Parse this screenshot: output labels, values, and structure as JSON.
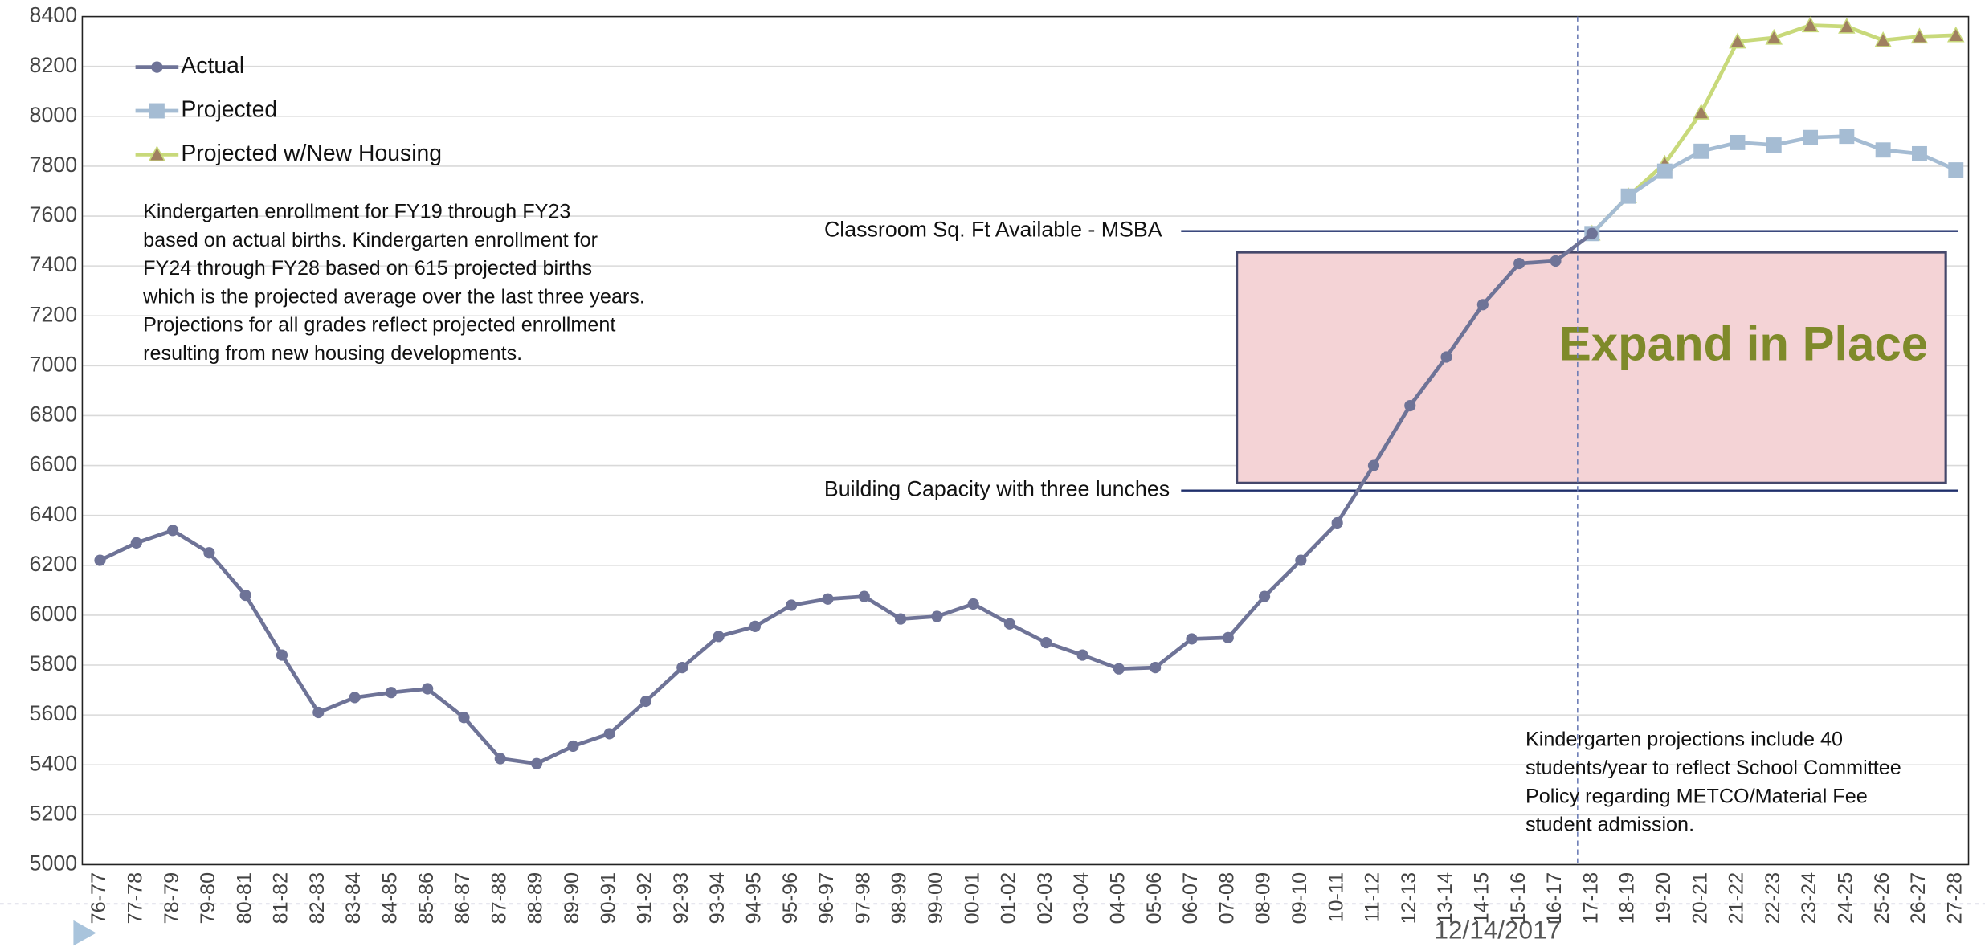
{
  "chart_data": {
    "type": "line",
    "categories": [
      "76-77",
      "77-78",
      "78-79",
      "79-80",
      "80-81",
      "81-82",
      "82-83",
      "83-84",
      "84-85",
      "85-86",
      "86-87",
      "87-88",
      "88-89",
      "89-90",
      "90-91",
      "91-92",
      "92-93",
      "93-94",
      "94-95",
      "95-96",
      "96-97",
      "97-98",
      "98-99",
      "99-00",
      "00-01",
      "01-02",
      "02-03",
      "03-04",
      "04-05",
      "05-06",
      "06-07",
      "07-08",
      "08-09",
      "09-10",
      "10-11",
      "11-12",
      "12-13",
      "13-14",
      "14-15",
      "15-16",
      "16-17",
      "17-18",
      "18-19",
      "19-20",
      "20-21",
      "21-22",
      "22-23",
      "23-24",
      "24-25",
      "25-26",
      "26-27",
      "27-28"
    ],
    "series": [
      {
        "name": "Actual",
        "color": "#6e7397",
        "marker": "circle",
        "values": [
          6220,
          6290,
          6340,
          6250,
          6080,
          5840,
          5610,
          5670,
          5690,
          5705,
          5590,
          5425,
          5405,
          5475,
          5525,
          5655,
          5790,
          5915,
          5955,
          6040,
          6065,
          6075,
          5985,
          5995,
          6045,
          5965,
          5890,
          5840,
          5785,
          5790,
          5905,
          5910,
          6075,
          6220,
          6370,
          6600,
          6840,
          7035,
          7245,
          7410,
          7420,
          7530,
          null,
          null,
          null,
          null,
          null,
          null,
          null,
          null,
          null,
          null
        ]
      },
      {
        "name": "Projected",
        "color": "#a5bcd3",
        "marker": "square",
        "values": [
          null,
          null,
          null,
          null,
          null,
          null,
          null,
          null,
          null,
          null,
          null,
          null,
          null,
          null,
          null,
          null,
          null,
          null,
          null,
          null,
          null,
          null,
          null,
          null,
          null,
          null,
          null,
          null,
          null,
          null,
          null,
          null,
          null,
          null,
          null,
          null,
          null,
          null,
          null,
          null,
          null,
          7530,
          7680,
          7780,
          7860,
          7895,
          7885,
          7915,
          7920,
          7865,
          7850,
          7785
        ]
      },
      {
        "name": "Projected w/New Housing",
        "color": "#c8d97a",
        "marker": "triangle",
        "marker_color": "#a08060",
        "values": [
          null,
          null,
          null,
          null,
          null,
          null,
          null,
          null,
          null,
          null,
          null,
          null,
          null,
          null,
          null,
          null,
          null,
          null,
          null,
          null,
          null,
          null,
          null,
          null,
          null,
          null,
          null,
          null,
          null,
          null,
          null,
          null,
          null,
          null,
          null,
          null,
          null,
          null,
          null,
          null,
          null,
          7530,
          7680,
          7810,
          8015,
          8300,
          8315,
          8365,
          8360,
          8305,
          8320,
          8325
        ]
      }
    ],
    "ylim": [
      5000,
      8400
    ],
    "yticks": [
      5000,
      5200,
      5400,
      5600,
      5800,
      6000,
      6200,
      6400,
      6600,
      6800,
      7000,
      7200,
      7400,
      7600,
      7800,
      8000,
      8200,
      8400
    ],
    "grid": true,
    "legend": "top-left",
    "reference_lines": [
      {
        "label": "Classroom Sq. Ft Available - MSBA",
        "value": 7540
      },
      {
        "label": "Building Capacity with three lunches",
        "value": 6500
      }
    ],
    "shaded_region": {
      "label": "Expand in Place",
      "ymin": 6530,
      "ymax": 7455
    },
    "notes": [
      [
        "Kindergarten enrollment for FY19 through FY23",
        "based on actual births.  Kindergarten enrollment for",
        "FY24 through FY28 based on 615 projected births",
        "which is the projected average over the last three years.",
        "Projections for all grades reflect projected enrollment",
        "resulting from new housing developments."
      ],
      [
        "Kindergarten projections include 40",
        "students/year to reflect School Committee",
        "Policy regarding METCO/Material Fee",
        "student admission."
      ]
    ],
    "footer": "12/14/2017"
  }
}
